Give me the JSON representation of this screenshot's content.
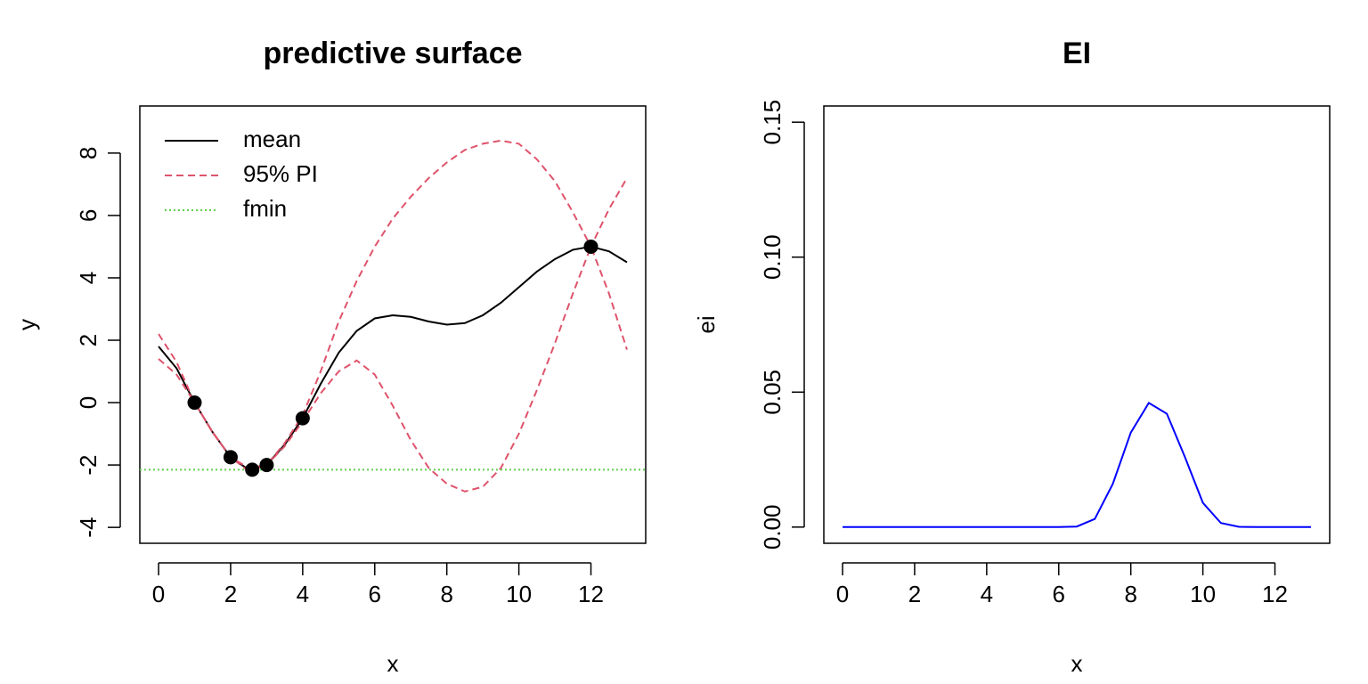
{
  "chart_data": [
    {
      "type": "line",
      "title": "predictive surface",
      "x_label": "x",
      "y_label": "y",
      "x": [
        0,
        0.5,
        1,
        1.5,
        2,
        2.5,
        3,
        3.5,
        4,
        4.5,
        5,
        5.5,
        6,
        6.5,
        7,
        7.5,
        8,
        8.5,
        9,
        9.5,
        10,
        10.5,
        11,
        11.5,
        12,
        12.5,
        13
      ],
      "series": [
        {
          "name": "mean",
          "color": "#000000",
          "dash": "solid",
          "values": [
            1.8,
            1.1,
            0.0,
            -0.95,
            -1.75,
            -2.15,
            -2.0,
            -1.35,
            -0.5,
            0.6,
            1.6,
            2.3,
            2.7,
            2.8,
            2.75,
            2.6,
            2.5,
            2.55,
            2.8,
            3.2,
            3.7,
            4.2,
            4.6,
            4.9,
            5.0,
            4.85,
            4.5
          ]
        },
        {
          "name": "95% PI",
          "color": "#DF536B",
          "dash": "dashed",
          "values": [
            2.2,
            1.3,
            0.0,
            -0.95,
            -1.75,
            -2.1,
            -2.0,
            -1.3,
            -0.4,
            1.0,
            2.6,
            3.9,
            5.0,
            5.9,
            6.6,
            7.2,
            7.7,
            8.1,
            8.3,
            8.4,
            8.3,
            7.8,
            7.1,
            6.1,
            5.0,
            6.2,
            7.2
          ],
          "values_lower": [
            1.4,
            0.9,
            0.0,
            -0.95,
            -1.75,
            -2.2,
            -2.0,
            -1.4,
            -0.6,
            0.3,
            1.0,
            1.35,
            0.9,
            -0.1,
            -1.2,
            -2.1,
            -2.6,
            -2.85,
            -2.7,
            -2.1,
            -1.0,
            0.4,
            1.9,
            3.5,
            5.0,
            3.5,
            1.7
          ]
        },
        {
          "name": "fmin",
          "color": "#61D04F",
          "dash": "dotted",
          "hline": -2.15
        }
      ],
      "points": {
        "color": "#000000",
        "x": [
          1,
          2,
          2.6,
          3,
          4,
          12
        ],
        "y": [
          0,
          -1.75,
          -2.15,
          -2.0,
          -0.5,
          5.0
        ]
      },
      "legend": "topleft",
      "xlim": [
        -0.52,
        13.52
      ],
      "xticks": [
        0,
        2,
        4,
        6,
        8,
        10,
        12
      ],
      "ylim": [
        -4.51,
        9.51
      ],
      "yticks": [
        -4,
        -2,
        0,
        2,
        4,
        6,
        8
      ]
    },
    {
      "type": "line",
      "title": "EI",
      "x_label": "x",
      "y_label": "ei",
      "x": [
        0,
        0.5,
        1,
        1.5,
        2,
        2.5,
        3,
        3.5,
        4,
        4.5,
        5,
        5.5,
        6,
        6.5,
        7,
        7.5,
        8,
        8.5,
        9,
        9.5,
        10,
        10.5,
        11,
        11.5,
        12,
        12.5,
        13
      ],
      "series": [
        {
          "color": "#0000FF",
          "dash": "solid",
          "values": [
            0,
            0,
            0,
            0,
            0,
            0,
            0,
            0,
            0,
            0,
            0,
            0,
            0,
            0.0002,
            0.003,
            0.016,
            0.035,
            0.046,
            0.042,
            0.026,
            0.009,
            0.0015,
            0.0001,
            0,
            0,
            0,
            0
          ]
        }
      ],
      "xlim": [
        -0.52,
        13.52
      ],
      "xticks": [
        0,
        2,
        4,
        6,
        8,
        10,
        12
      ],
      "ylim": [
        -0.006,
        0.156
      ],
      "yticks": [
        {
          "value": 0,
          "label": "0.00"
        },
        {
          "value": 0.05,
          "label": "0.05"
        },
        {
          "value": 0.1,
          "label": "0.10"
        },
        {
          "value": 0.15,
          "label": "0.15"
        }
      ]
    }
  ]
}
